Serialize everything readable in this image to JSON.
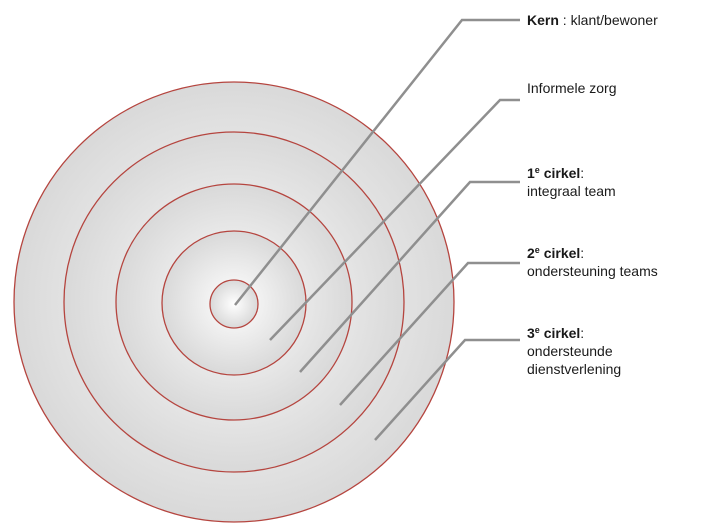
{
  "labels": [
    {
      "bold": "Kern",
      "text": " : klant/bewoner"
    },
    {
      "text": "Informele zorg"
    },
    {
      "num": "1",
      "sup": "e",
      "bold": " cirkel",
      "text": ":",
      "lines": [
        "integraal team"
      ]
    },
    {
      "num": "2",
      "sup": "e",
      "bold": " cirkel",
      "text": ":",
      "lines": [
        "ondersteuning teams"
      ]
    },
    {
      "num": "3",
      "sup": "e",
      "bold": " cirkel",
      "text": ":",
      "lines": [
        "ondersteunde",
        "dienstverlening"
      ]
    }
  ]
}
